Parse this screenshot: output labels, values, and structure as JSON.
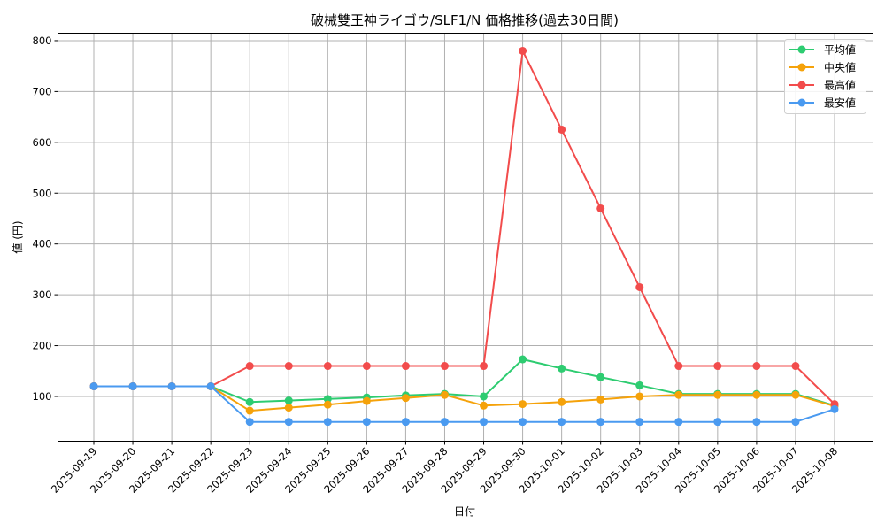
{
  "chart_data": {
    "type": "line",
    "title": "破械雙王神ライゴウ/SLF1/N 価格推移(過去30日間)",
    "xlabel": "日付",
    "ylabel": "値 (円)",
    "ylim": [
      12,
      818
    ],
    "yticks": [
      100,
      200,
      300,
      400,
      500,
      600,
      700,
      800
    ],
    "grid": true,
    "legend_position": "upper right",
    "x": [
      "2025-09-19",
      "2025-09-20",
      "2025-09-21",
      "2025-09-22",
      "2025-09-23",
      "2025-09-24",
      "2025-09-25",
      "2025-09-26",
      "2025-09-27",
      "2025-09-28",
      "2025-09-29",
      "2025-09-30",
      "2025-10-01",
      "2025-10-02",
      "2025-10-03",
      "2025-10-04",
      "2025-10-05",
      "2025-10-06",
      "2025-10-07",
      "2025-10-08"
    ],
    "series": [
      {
        "name": "平均値",
        "color": "#2ecc71",
        "values": [
          120,
          120,
          120,
          120,
          89,
          92,
          95,
          98,
          102,
          105,
          100,
          173,
          155,
          138,
          122,
          105,
          105,
          105,
          105,
          82
        ]
      },
      {
        "name": "中央値",
        "color": "#f5a20a",
        "values": [
          120,
          120,
          120,
          120,
          72,
          78,
          84,
          91,
          97,
          103,
          82,
          85,
          89,
          94,
          100,
          103,
          103,
          103,
          103,
          81
        ]
      },
      {
        "name": "最高値",
        "color": "#f24c4c",
        "values": [
          120,
          120,
          120,
          120,
          160,
          160,
          160,
          160,
          160,
          160,
          160,
          780,
          625,
          470,
          315,
          160,
          160,
          160,
          160,
          85
        ]
      },
      {
        "name": "最安値",
        "color": "#4a9af0",
        "values": [
          120,
          120,
          120,
          120,
          50,
          50,
          50,
          50,
          50,
          50,
          50,
          50,
          50,
          50,
          50,
          50,
          50,
          50,
          50,
          75
        ]
      }
    ]
  }
}
